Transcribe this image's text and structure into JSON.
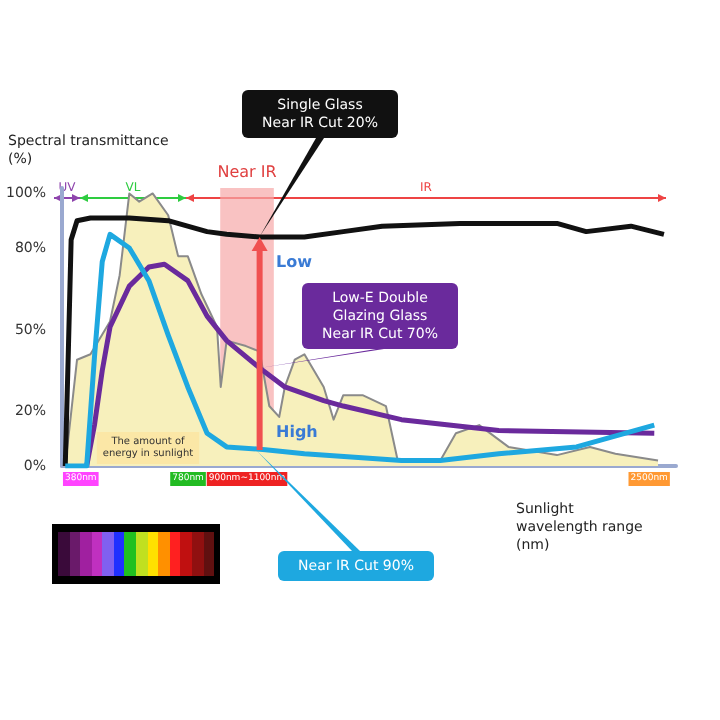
{
  "chart_data": {
    "type": "line",
    "xlabel": "Sunlight wavelength range (nm)",
    "ylabel": "Spectral transmittance (%)",
    "xlim": [
      310,
      2600
    ],
    "ylim": [
      0,
      102
    ],
    "xticks": [
      {
        "value": 380,
        "label": "380nm"
      },
      {
        "value": 780,
        "label": "780nm"
      },
      {
        "value": 1000,
        "label": "900nm~1100nm"
      },
      {
        "value": 2500,
        "label": "2500nm"
      }
    ],
    "yticks": [
      {
        "value": 0,
        "label": "0%"
      },
      {
        "value": 20,
        "label": "20%"
      },
      {
        "value": 50,
        "label": "50%"
      },
      {
        "value": 80,
        "label": "80%"
      },
      {
        "value": 100,
        "label": "100%"
      }
    ],
    "series": [
      {
        "type": "area",
        "color": "#f7f0bc",
        "x": [
          322,
          366,
          416,
          489,
          525,
          561,
          598,
          648,
          706,
          743,
          779,
          830,
          888,
          902,
          924,
          996,
          1047,
          1083,
          1120,
          1141,
          1178,
          1214,
          1286,
          1323,
          1359,
          1431,
          1518,
          1562,
          1721,
          1779,
          1866,
          1975,
          2156,
          2279,
          2374,
          2533
        ],
        "values": [
          0,
          39,
          41,
          53,
          70,
          100,
          97,
          100,
          92,
          77,
          77,
          63,
          51,
          29,
          46,
          44,
          42,
          22,
          18,
          29,
          39,
          41,
          29,
          17,
          26,
          26,
          22,
          2,
          2,
          12,
          15,
          7,
          4,
          7,
          4.5,
          2
        ]
      },
      {
        "color": "#111111",
        "x": [
          322,
          333,
          344,
          366,
          416,
          561,
          706,
          851,
          924,
          1047,
          1214,
          1359,
          1504,
          1794,
          2156,
          2265,
          2432,
          2555
        ],
        "values": [
          0,
          40,
          83,
          90,
          91,
          91,
          90,
          86,
          85,
          84,
          84,
          86,
          88,
          89,
          89,
          86,
          88,
          85
        ]
      },
      {
        "color": "#6a2a9c",
        "x": [
          402,
          431,
          460,
          489,
          561,
          634,
          692,
          779,
          851,
          924,
          1047,
          1141,
          1286,
          1359,
          1576,
          1939,
          2519
        ],
        "values": [
          0,
          15,
          35,
          51,
          66,
          73,
          74,
          68,
          55,
          46,
          36,
          29,
          24,
          22,
          17,
          13,
          12
        ]
      },
      {
        "color": "#1ea8e0",
        "x": [
          322,
          402,
          431,
          460,
          489,
          561,
          634,
          706,
          779,
          851,
          924,
          1069,
          1214,
          1576,
          1721,
          1939,
          2229,
          2519
        ],
        "values": [
          0,
          0,
          40,
          75,
          85,
          80,
          68,
          48,
          29,
          12,
          7,
          6,
          4.5,
          2,
          2,
          4.5,
          7,
          15
        ]
      }
    ],
    "bands": [
      {
        "axis": "x",
        "from": 900,
        "to": 1100,
        "label": "Near IR",
        "color": "#f6a8a8"
      }
    ],
    "annotations": [
      "UV",
      "VL",
      "IR",
      "Single Glass\nNear IR Cut 20%",
      {
        "text": "Low-E Double\nGlazing Glass\nNear IR Cut 70%",
        "x": 1047,
        "y": 36
      },
      "Near IR Cut 90%",
      {
        "text": "Low",
        "x": 1047,
        "y": 84
      },
      "High",
      "The amount of\nenergy in sunlight"
    ],
    "marker": "none",
    "line_style": "solid"
  }
}
